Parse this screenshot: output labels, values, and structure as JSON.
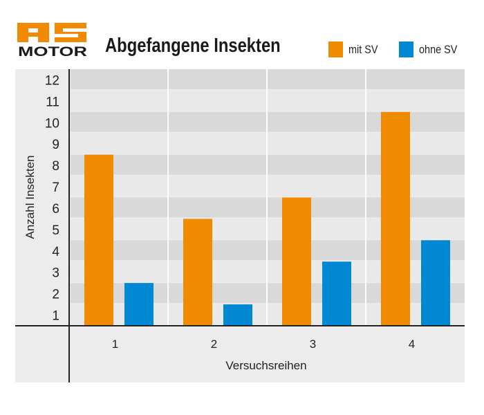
{
  "logo": {
    "text_top": "AS",
    "text_bottom": "MOTOR",
    "color": "#f08a00"
  },
  "chart_data": {
    "type": "bar",
    "title": "Abgefangene Insekten",
    "xlabel": "Versuchsreihen",
    "ylabel": "Anzahl Insekten",
    "categories": [
      "1",
      "2",
      "3",
      "4"
    ],
    "yticks": [
      "1",
      "2",
      "3",
      "4",
      "5",
      "6",
      "7",
      "8",
      "9",
      "10",
      "11",
      "12"
    ],
    "ylim": [
      0,
      12
    ],
    "grid": true,
    "legend_position": "top-right",
    "series": [
      {
        "name": "mit SV",
        "color": "#f08a00",
        "values": [
          8,
          5,
          6,
          10
        ]
      },
      {
        "name": "ohne SV",
        "color": "#0088d2",
        "values": [
          2,
          1,
          3,
          4
        ]
      }
    ]
  }
}
